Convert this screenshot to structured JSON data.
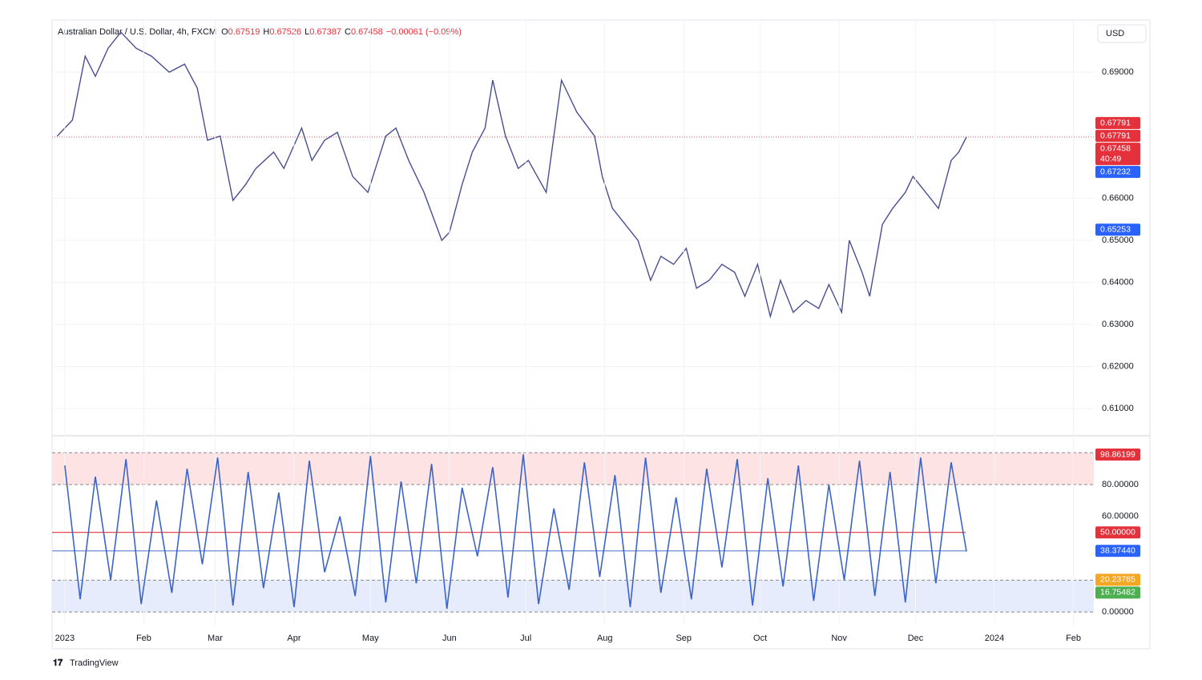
{
  "header": {
    "symbol": "Australian Dollar / U.S. Dollar, 4h, FXCM",
    "ohlc": [
      {
        "label": "O",
        "value": "0.67519"
      },
      {
        "label": "H",
        "value": "0.67526"
      },
      {
        "label": "L",
        "value": "0.67387"
      },
      {
        "label": "C",
        "value": "0.67458"
      }
    ],
    "change": "−0.00061 (−0.09%)"
  },
  "ui": {
    "currency": "USD",
    "brand": "TradingView"
  },
  "chart_data": [
    {
      "type": "line",
      "color": "#4a4e8f",
      "x": [
        -3,
        3,
        8,
        12,
        17,
        22,
        28,
        34,
        41,
        47,
        52,
        56,
        61,
        66,
        71,
        75,
        82,
        86,
        93,
        97,
        102,
        107,
        113,
        119,
        126,
        130,
        135,
        141,
        148,
        151,
        156,
        160,
        165,
        168,
        173,
        178,
        182,
        189,
        195,
        201,
        208,
        211,
        215,
        220,
        225,
        230,
        234,
        239,
        244,
        248,
        253,
        258,
        263,
        267,
        272,
        277,
        281,
        286,
        291,
        296,
        300,
        305,
        308,
        313,
        316,
        321,
        325,
        330,
        333,
        338,
        343,
        348,
        351,
        354
      ],
      "values": [
        0.6748,
        0.6786,
        0.6938,
        0.689,
        0.6957,
        0.6995,
        0.6957,
        0.6938,
        0.69,
        0.6919,
        0.6862,
        0.6738,
        0.6748,
        0.6595,
        0.6633,
        0.6671,
        0.671,
        0.6671,
        0.6767,
        0.669,
        0.6738,
        0.6757,
        0.6652,
        0.6614,
        0.6748,
        0.6767,
        0.669,
        0.6614,
        0.65,
        0.6519,
        0.6633,
        0.671,
        0.6767,
        0.6881,
        0.6748,
        0.6671,
        0.669,
        0.6614,
        0.6881,
        0.6805,
        0.6748,
        0.6652,
        0.6576,
        0.6538,
        0.65,
        0.6405,
        0.6462,
        0.6443,
        0.6481,
        0.6386,
        0.6405,
        0.6443,
        0.6424,
        0.6367,
        0.6443,
        0.6319,
        0.6405,
        0.6329,
        0.6357,
        0.6338,
        0.6395,
        0.6329,
        0.65,
        0.6424,
        0.6367,
        0.6538,
        0.6576,
        0.6614,
        0.6652,
        0.6614,
        0.6576,
        0.669,
        0.671,
        0.6746
      ],
      "xlim": [
        -5,
        404
      ],
      "ylim": [
        0.6043,
        0.7024
      ],
      "yticks": [
        {
          "value": 0.69,
          "label": "0.69000"
        },
        {
          "value": 0.66,
          "label": "0.66000"
        },
        {
          "value": 0.65,
          "label": "0.65000"
        },
        {
          "value": 0.64,
          "label": "0.64000"
        },
        {
          "value": 0.63,
          "label": "0.63000"
        },
        {
          "value": 0.62,
          "label": "0.62000"
        },
        {
          "value": 0.61,
          "label": "0.61000"
        }
      ],
      "last_price": 0.67458,
      "last_price_color": "#e0595c",
      "badges": [
        {
          "value": 0.67791,
          "label": "0.67791",
          "color": "#e5313c"
        },
        {
          "value": 0.67791,
          "label": "0.67791",
          "color": "#e5313c"
        },
        {
          "value": 0.67458,
          "label": "0.67458",
          "color": "#e5313c"
        },
        {
          "value": 0.67232,
          "label": "0.67232",
          "color": "#2962ff"
        },
        {
          "value": 0.65253,
          "label": "0.65253",
          "color": "#2962ff"
        }
      ],
      "countdown": "40:49",
      "grid": true
    },
    {
      "type": "oscillator",
      "color": "#3c63c9",
      "x": [
        0,
        6,
        12,
        18,
        24,
        30,
        36,
        42,
        48,
        54,
        60,
        66,
        72,
        78,
        84,
        90,
        96,
        102,
        108,
        114,
        120,
        126,
        132,
        138,
        144,
        150,
        156,
        162,
        168,
        174,
        180,
        186,
        192,
        198,
        204,
        210,
        216,
        222,
        228,
        234,
        240,
        246,
        252,
        258,
        264,
        270,
        276,
        282,
        288,
        294,
        300,
        306,
        312,
        318,
        324,
        330,
        336,
        342,
        348,
        354
      ],
      "values": [
        92,
        8,
        85,
        20,
        96,
        5,
        70,
        12,
        90,
        30,
        97,
        4,
        88,
        15,
        75,
        3,
        95,
        25,
        60,
        10,
        98,
        6,
        82,
        18,
        93,
        2,
        78,
        35,
        91,
        9,
        99,
        5,
        65,
        14,
        94,
        22,
        86,
        3,
        97,
        12,
        72,
        8,
        90,
        28,
        96,
        4,
        84,
        16,
        92,
        7,
        80,
        20,
        95,
        10,
        88,
        6,
        97,
        18,
        94,
        38
      ],
      "xlim": [
        -5,
        404
      ],
      "ylim": [
        -8,
        108.7
      ],
      "yticks": [
        {
          "value": 80,
          "label": "80.00000"
        },
        {
          "value": 60,
          "label": "60.00000"
        },
        {
          "value": 0,
          "label": "0.00000"
        }
      ],
      "zones": [
        {
          "from": 80,
          "to": 100,
          "color": "#fde3e4"
        },
        {
          "from": 0,
          "to": 20,
          "color": "#e6ecfb"
        }
      ],
      "lines": [
        {
          "value": 50,
          "color": "#e5313c"
        },
        {
          "value": 38.3744,
          "color": "#5a7fd6"
        }
      ],
      "badges": [
        {
          "value": 98.86199,
          "label": "98.86199",
          "color": "#e5313c"
        },
        {
          "value": 50,
          "label": "50.00000",
          "color": "#e5313c"
        },
        {
          "value": 38.3744,
          "label": "38.37440",
          "color": "#2962ff"
        },
        {
          "value": 20.23785,
          "label": "20.23785",
          "color": "#f5a623"
        },
        {
          "value": 16.75482,
          "label": "16.75482",
          "color": "#4caf50"
        }
      ],
      "xticks": [
        {
          "value": 0,
          "label": "2023"
        },
        {
          "value": 31,
          "label": "Feb"
        },
        {
          "value": 59,
          "label": "Mar"
        },
        {
          "value": 90,
          "label": "Apr"
        },
        {
          "value": 120,
          "label": "May"
        },
        {
          "value": 151,
          "label": "Jun"
        },
        {
          "value": 181,
          "label": "Jul"
        },
        {
          "value": 212,
          "label": "Aug"
        },
        {
          "value": 243,
          "label": "Sep"
        },
        {
          "value": 273,
          "label": "Oct"
        },
        {
          "value": 304,
          "label": "Nov"
        },
        {
          "value": 334,
          "label": "Dec"
        },
        {
          "value": 365,
          "label": "2024"
        },
        {
          "value": 396,
          "label": "Feb"
        }
      ]
    }
  ]
}
